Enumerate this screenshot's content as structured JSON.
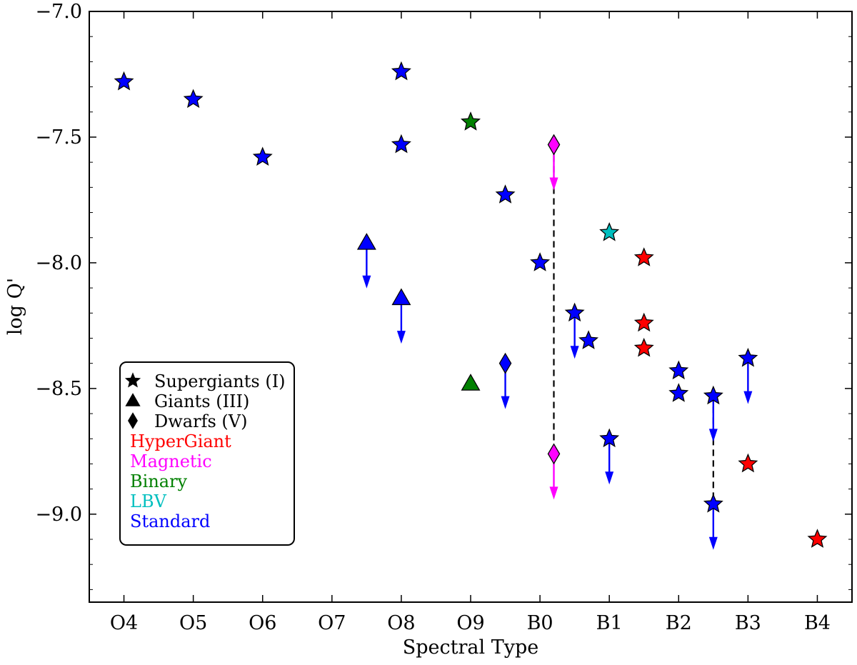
{
  "chart_data": {
    "type": "scatter",
    "title": "",
    "xlabel": "Spectral Type",
    "ylabel": "log Q'",
    "categories": [
      "O4",
      "O5",
      "O6",
      "O7",
      "O8",
      "O9",
      "B0",
      "B1",
      "B2",
      "B3",
      "B4"
    ],
    "xlim": [
      -0.5,
      10.5
    ],
    "ylim": [
      -9.35,
      -7.0
    ],
    "yticks": [
      -7.0,
      -7.5,
      -8.0,
      -8.5,
      -9.0
    ],
    "ytick_labels": [
      "−7.0",
      "−7.5",
      "−8.0",
      "−8.5",
      "−9.0"
    ],
    "colors": {
      "HyperGiant": "#ff0000",
      "Magnetic": "#ff00ff",
      "Binary": "#008000",
      "LBV": "#00bfbf",
      "Standard": "#0000ff"
    },
    "points": [
      {
        "x": 0.0,
        "y": -7.28,
        "marker": "star",
        "group": "Standard",
        "upper_limit": false
      },
      {
        "x": 1.0,
        "y": -7.35,
        "marker": "star",
        "group": "Standard",
        "upper_limit": false
      },
      {
        "x": 2.0,
        "y": -7.58,
        "marker": "star",
        "group": "Standard",
        "upper_limit": false
      },
      {
        "x": 4.0,
        "y": -7.24,
        "marker": "star",
        "group": "Standard",
        "upper_limit": false
      },
      {
        "x": 4.0,
        "y": -7.53,
        "marker": "star",
        "group": "Standard",
        "upper_limit": false
      },
      {
        "x": 3.5,
        "y": -7.92,
        "marker": "triangle",
        "group": "Standard",
        "upper_limit": true
      },
      {
        "x": 4.0,
        "y": -8.14,
        "marker": "triangle",
        "group": "Standard",
        "upper_limit": true
      },
      {
        "x": 5.0,
        "y": -7.44,
        "marker": "star",
        "group": "Binary",
        "upper_limit": false
      },
      {
        "x": 5.0,
        "y": -8.48,
        "marker": "triangle",
        "group": "Binary",
        "upper_limit": false
      },
      {
        "x": 5.5,
        "y": -7.73,
        "marker": "star",
        "group": "Standard",
        "upper_limit": false
      },
      {
        "x": 5.5,
        "y": -8.4,
        "marker": "diamond",
        "group": "Standard",
        "upper_limit": true
      },
      {
        "x": 6.0,
        "y": -8.0,
        "marker": "star",
        "group": "Standard",
        "upper_limit": false
      },
      {
        "x": 6.2,
        "y": -7.53,
        "marker": "diamond",
        "group": "Magnetic",
        "upper_limit": true
      },
      {
        "x": 6.2,
        "y": -8.76,
        "marker": "diamond",
        "group": "Magnetic",
        "upper_limit": true
      },
      {
        "x": 6.5,
        "y": -8.2,
        "marker": "star",
        "group": "Standard",
        "upper_limit": true
      },
      {
        "x": 6.7,
        "y": -8.31,
        "marker": "star",
        "group": "Standard",
        "upper_limit": false
      },
      {
        "x": 7.0,
        "y": -7.88,
        "marker": "star",
        "group": "LBV",
        "upper_limit": false
      },
      {
        "x": 7.0,
        "y": -8.7,
        "marker": "star",
        "group": "Standard",
        "upper_limit": true
      },
      {
        "x": 7.5,
        "y": -7.98,
        "marker": "star",
        "group": "HyperGiant",
        "upper_limit": false
      },
      {
        "x": 7.5,
        "y": -8.24,
        "marker": "star",
        "group": "HyperGiant",
        "upper_limit": false
      },
      {
        "x": 7.5,
        "y": -8.34,
        "marker": "star",
        "group": "HyperGiant",
        "upper_limit": false
      },
      {
        "x": 8.0,
        "y": -8.43,
        "marker": "star",
        "group": "Standard",
        "upper_limit": false
      },
      {
        "x": 8.0,
        "y": -8.52,
        "marker": "star",
        "group": "Standard",
        "upper_limit": false
      },
      {
        "x": 8.5,
        "y": -8.53,
        "marker": "star",
        "group": "Standard",
        "upper_limit": true
      },
      {
        "x": 8.5,
        "y": -8.96,
        "marker": "star",
        "group": "Standard",
        "upper_limit": true
      },
      {
        "x": 9.0,
        "y": -8.38,
        "marker": "star",
        "group": "Standard",
        "upper_limit": true
      },
      {
        "x": 9.0,
        "y": -8.8,
        "marker": "star",
        "group": "HyperGiant",
        "upper_limit": false
      },
      {
        "x": 10.0,
        "y": -9.1,
        "marker": "star",
        "group": "HyperGiant",
        "upper_limit": false
      }
    ],
    "dashed_links": [
      {
        "x": 6.2,
        "y1": -7.53,
        "y2": -8.76
      },
      {
        "x": 8.5,
        "y1": -8.53,
        "y2": -8.96
      }
    ],
    "legend": {
      "position": "lower-left",
      "markers": [
        {
          "marker": "star",
          "label": "Supergiants (I)"
        },
        {
          "marker": "triangle",
          "label": "Giants (III)"
        },
        {
          "marker": "diamond",
          "label": "Dwarfs (V)"
        }
      ],
      "colors": [
        {
          "group": "HyperGiant",
          "label": "HyperGiant"
        },
        {
          "group": "Magnetic",
          "label": "Magnetic"
        },
        {
          "group": "Binary",
          "label": "Binary"
        },
        {
          "group": "LBV",
          "label": "LBV"
        },
        {
          "group": "Standard",
          "label": "Standard"
        }
      ]
    }
  }
}
